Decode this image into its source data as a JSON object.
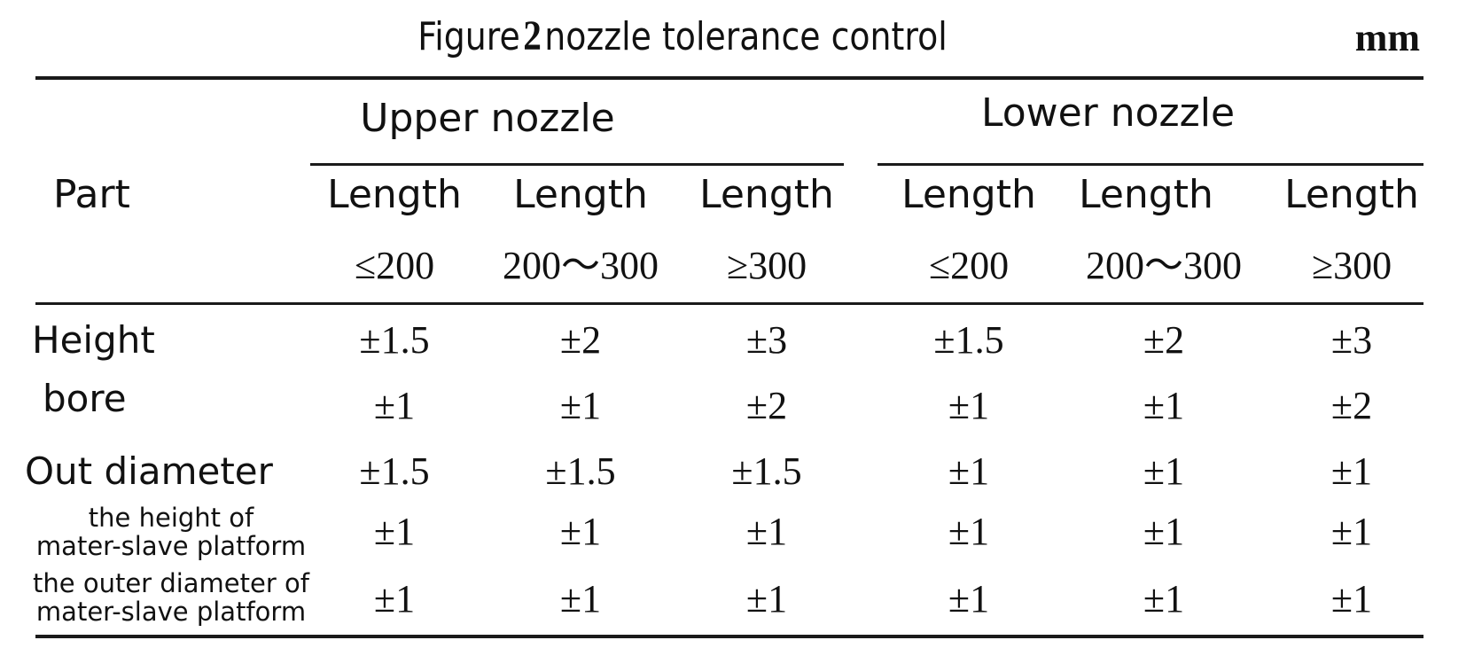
{
  "title": {
    "prefix": "Figure",
    "number": "2",
    "suffix": "nozzle tolerance control"
  },
  "unit": "mm",
  "header": {
    "part": "Part",
    "groups": [
      {
        "label": "Upper nozzle",
        "columns": [
          {
            "line1": "Length",
            "line2": "≤200"
          },
          {
            "line1": "Length",
            "line2": "200～300"
          },
          {
            "line1": "Length",
            "line2": "≥300"
          }
        ]
      },
      {
        "label": "Lower nozzle",
        "columns": [
          {
            "line1": "Length",
            "line2": "≤200"
          },
          {
            "line1": "Length",
            "line2": "200～300"
          },
          {
            "line1": "Length",
            "line2": "≥300"
          }
        ]
      }
    ]
  },
  "rows": [
    {
      "part": "Height",
      "values": [
        "±1.5",
        "±2",
        "±3",
        "±1.5",
        "±2",
        "±3"
      ]
    },
    {
      "part": "bore",
      "values": [
        "±1",
        "±1",
        "±2",
        "±1",
        "±1",
        "±2"
      ]
    },
    {
      "part": "Out diameter",
      "values": [
        "±1.5",
        "±1.5",
        "±1.5",
        "±1",
        "±1",
        "±1"
      ]
    },
    {
      "part_line1": "the height of",
      "part_line2": "mater-slave platform",
      "values": [
        "±1",
        "±1",
        "±1",
        "±1",
        "±1",
        "±1"
      ]
    },
    {
      "part_line1": "the outer diameter of",
      "part_line2": "mater-slave platform",
      "values": [
        "±1",
        "±1",
        "±1",
        "±1",
        "±1",
        "±1"
      ]
    }
  ]
}
